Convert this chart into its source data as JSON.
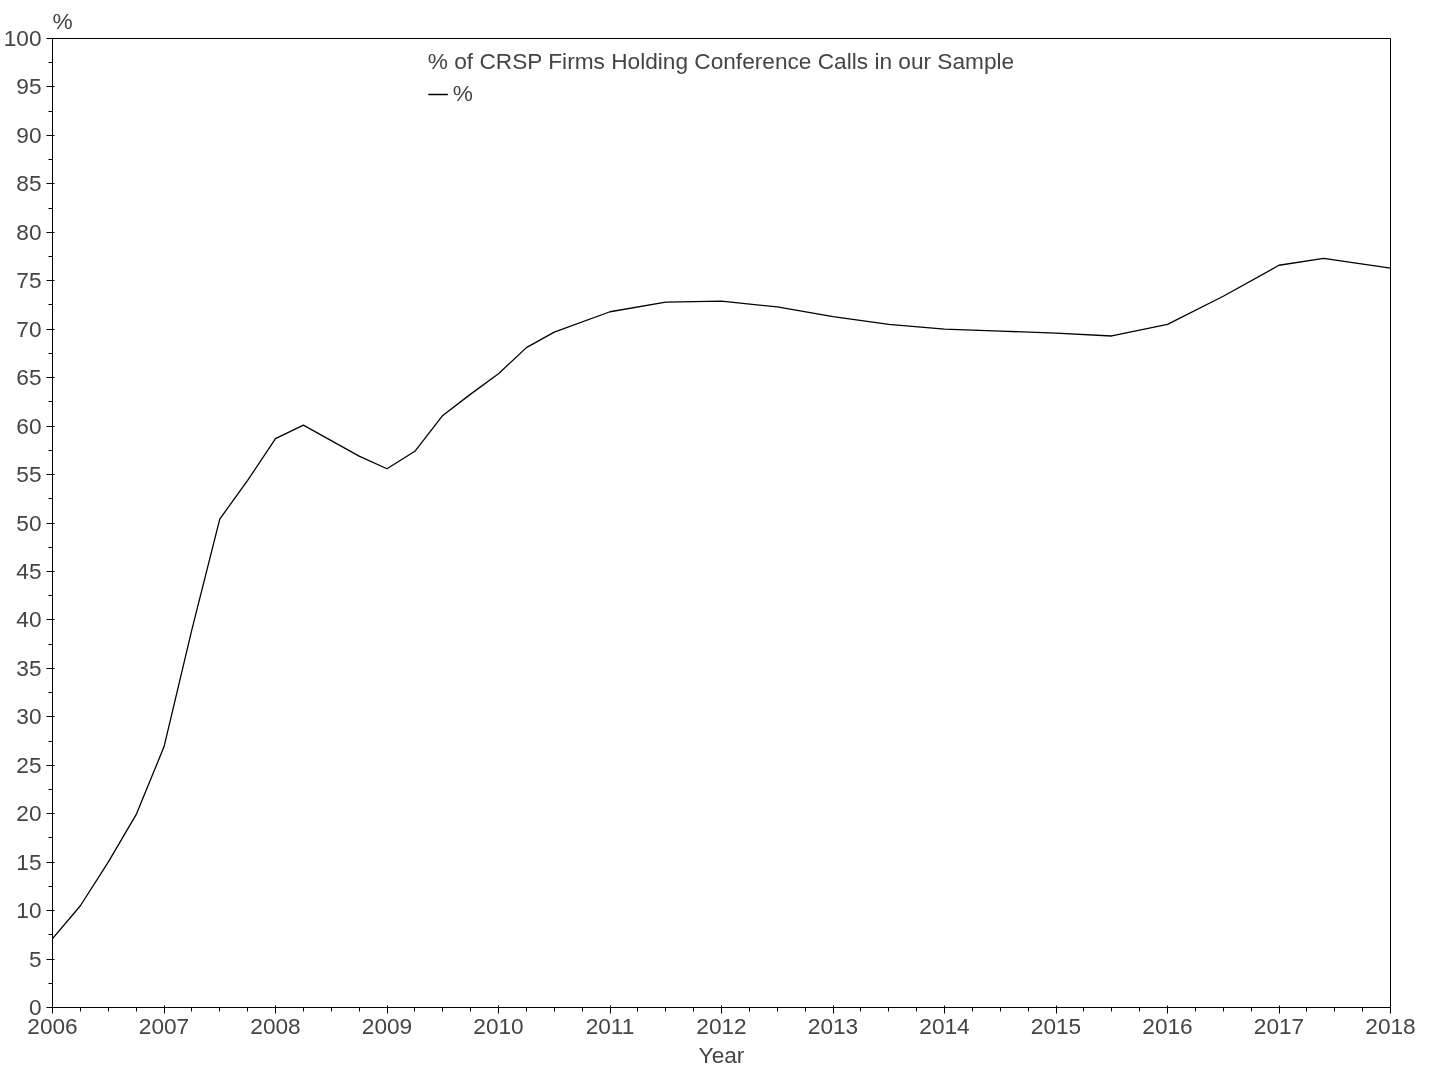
{
  "chart_data": {
    "type": "line",
    "legend_title": "% of CRSP Firms Holding Conference Calls in our Sample",
    "xlabel": "Year",
    "ylabel": "%",
    "x": [
      2006,
      2006.25,
      2006.5,
      2006.75,
      2007,
      2007.25,
      2007.5,
      2007.75,
      2008,
      2008.25,
      2008.5,
      2008.75,
      2009,
      2009.25,
      2009.5,
      2009.75,
      2010,
      2010.25,
      2010.5,
      2011,
      2011.5,
      2012,
      2012.5,
      2013,
      2013.5,
      2014,
      2014.5,
      2015,
      2015.5,
      2016,
      2016.5,
      2017,
      2017.4,
      2018
    ],
    "series": [
      {
        "name": "%",
        "color": "#000000",
        "values": [
          7.1,
          10.5,
          15,
          19.9,
          26.9,
          39,
          50.4,
          54.4,
          58.7,
          60.1,
          58.5,
          56.9,
          55.6,
          57.4,
          61.1,
          63.3,
          65.4,
          68.1,
          69.7,
          71.8,
          72.8,
          72.9,
          72.3,
          71.3,
          70.5,
          70.0,
          69.8,
          69.6,
          69.3,
          70.5,
          73.4,
          76.6,
          77.3,
          76.3
        ]
      }
    ],
    "xlim": [
      2006,
      2018
    ],
    "xticks": [
      2006,
      2007,
      2008,
      2009,
      2010,
      2011,
      2012,
      2013,
      2014,
      2015,
      2016,
      2017,
      2018
    ],
    "ylim": [
      0,
      100
    ],
    "yticks": [
      0,
      5,
      10,
      15,
      20,
      25,
      30,
      35,
      40,
      45,
      50,
      55,
      60,
      65,
      70,
      75,
      80,
      85,
      90,
      95,
      100
    ],
    "grid": false,
    "legend": "top",
    "line_style": "solid",
    "marker": "none"
  }
}
